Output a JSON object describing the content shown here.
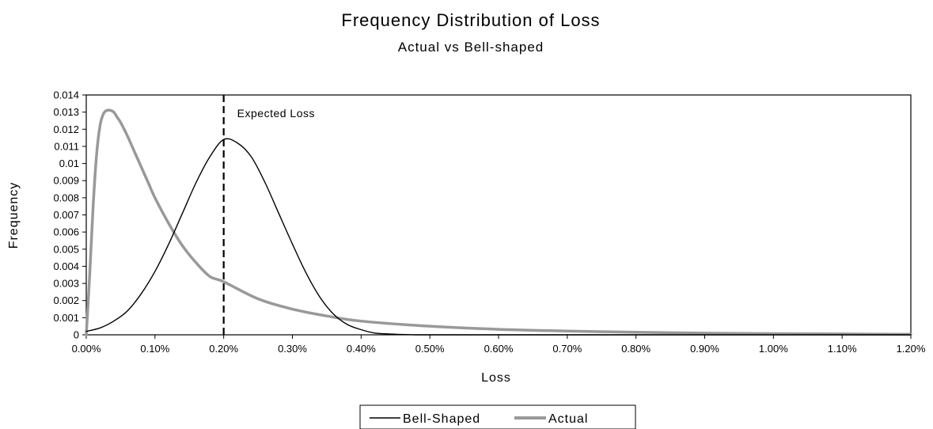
{
  "chart_data": {
    "type": "line",
    "title": "Frequency Distribution of Loss",
    "subtitle": "Actual vs Bell-shaped",
    "xlabel": "Loss",
    "ylabel": "Frequency",
    "xlim": [
      0,
      1.2
    ],
    "ylim": [
      0,
      0.014
    ],
    "x_ticks": [
      0,
      0.1,
      0.2,
      0.3,
      0.4,
      0.5,
      0.6,
      0.7,
      0.8,
      0.9,
      1.0,
      1.1,
      1.2
    ],
    "x_tick_labels": [
      "0.00%",
      "0.10%",
      "0.20%",
      "0.30%",
      "0.40%",
      "0.50%",
      "0.60%",
      "0.70%",
      "0.80%",
      "0.90%",
      "1.00%",
      "1.10%",
      "1.20%"
    ],
    "y_ticks": [
      0,
      0.001,
      0.002,
      0.003,
      0.004,
      0.005,
      0.006,
      0.007,
      0.008,
      0.009,
      0.01,
      0.011,
      0.012,
      0.013,
      0.014
    ],
    "y_tick_labels": [
      "0",
      "0.001",
      "0.002",
      "0.003",
      "0.004",
      "0.005",
      "0.006",
      "0.007",
      "0.008",
      "0.009",
      "0.01",
      "0.011",
      "0.012",
      "0.013",
      "0.014"
    ],
    "grid": false,
    "legend_position": "bottom",
    "series": [
      {
        "name": "Bell-Shaped",
        "color": "#000000",
        "x": [
          0.0,
          0.02,
          0.04,
          0.06,
          0.08,
          0.1,
          0.12,
          0.14,
          0.16,
          0.18,
          0.2,
          0.22,
          0.24,
          0.26,
          0.28,
          0.3,
          0.32,
          0.34,
          0.36,
          0.38,
          0.4,
          0.42,
          0.44,
          0.46,
          0.48,
          0.5,
          0.6,
          0.8,
          1.0,
          1.2
        ],
        "y": [
          0.0002,
          0.0004,
          0.0008,
          0.0014,
          0.0024,
          0.0037,
          0.0053,
          0.0071,
          0.0089,
          0.0104,
          0.0114,
          0.0112,
          0.0104,
          0.0089,
          0.0071,
          0.0053,
          0.0036,
          0.0022,
          0.0012,
          0.0006,
          0.0003,
          0.0001,
          5e-05,
          2e-05,
          0.0,
          0.0,
          0.0,
          0.0,
          0.0,
          0.0
        ]
      },
      {
        "name": "Actual",
        "color": "#999999",
        "x": [
          0.0,
          0.005,
          0.01,
          0.015,
          0.02,
          0.025,
          0.03,
          0.035,
          0.04,
          0.045,
          0.05,
          0.06,
          0.07,
          0.08,
          0.09,
          0.1,
          0.12,
          0.14,
          0.16,
          0.18,
          0.2,
          0.25,
          0.3,
          0.35,
          0.4,
          0.5,
          0.6,
          0.7,
          0.8,
          0.9,
          1.0,
          1.1,
          1.2
        ],
        "y": [
          0.0,
          0.0035,
          0.0075,
          0.0105,
          0.0122,
          0.0129,
          0.0131,
          0.0131,
          0.013,
          0.0127,
          0.0124,
          0.0116,
          0.0107,
          0.0098,
          0.0089,
          0.008,
          0.0065,
          0.0052,
          0.0042,
          0.0034,
          0.0031,
          0.0021,
          0.0015,
          0.0011,
          0.0008,
          0.0005,
          0.00032,
          0.00022,
          0.00015,
          0.0001,
          7e-05,
          5e-05,
          3e-05
        ]
      }
    ],
    "reference_lines": [
      {
        "x": 0.2,
        "label": "Expected Loss",
        "style": "dashed",
        "color": "#000000"
      }
    ]
  }
}
